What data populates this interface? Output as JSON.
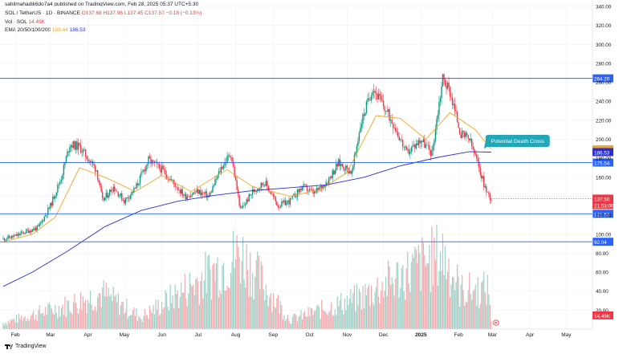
{
  "header": {
    "publisher": "sahilmahadik6do7a4 published on TradingView.com, Feb 28, 2025 05:37 UTC+5:30",
    "symbol": "SOL / TetherUS · 1D · BINANCE",
    "ohlc": "O137.68 H137.96 L137.45 C137.50 −0.18 (−0.13%)",
    "vol_label": "Vol · SOL",
    "vol_value": "14.49K",
    "ema_label": "EMA 20/50/100/200",
    "ema_val1": "189.44",
    "ema_val2": "186.53"
  },
  "footer": {
    "brand": "TradingView"
  },
  "chart_data": {
    "type": "candlestick",
    "symbol": "SOL / TetherUS",
    "interval": "1D",
    "exchange": "BINANCE",
    "y_axis": {
      "range": [
        0,
        340
      ],
      "ticks": [
        "340.00",
        "320.00",
        "300.00",
        "280.00",
        "260.00",
        "240.00",
        "220.00",
        "200.00",
        "180.00",
        "160.00",
        "140.00",
        "120.00",
        "100.00",
        "80.00",
        "60.00",
        "40.00",
        "20.00"
      ]
    },
    "x_axis": {
      "labels": [
        {
          "label": "Feb",
          "date": "2024-02-01"
        },
        {
          "label": "Mar",
          "date": "2024-03-01"
        },
        {
          "label": "Apr",
          "date": "2024-04-01"
        },
        {
          "label": "May",
          "date": "2024-05-01"
        },
        {
          "label": "Jun",
          "date": "2024-06-01"
        },
        {
          "label": "Jul",
          "date": "2024-07-01"
        },
        {
          "label": "Aug",
          "date": "2024-08-01"
        },
        {
          "label": "Sep",
          "date": "2024-09-01"
        },
        {
          "label": "Oct",
          "date": "2024-10-01"
        },
        {
          "label": "Nov",
          "date": "2024-11-01"
        },
        {
          "label": "Dec",
          "date": "2024-12-01"
        },
        {
          "label": "2025",
          "date": "2025-01-01"
        },
        {
          "label": "Feb",
          "date": "2025-02-01"
        },
        {
          "label": "Mar",
          "date": "2025-03-01"
        },
        {
          "label": "Apr",
          "date": "2025-04-01"
        },
        {
          "label": "May",
          "date": "2025-05-01"
        }
      ]
    },
    "horizontal_levels": [
      {
        "price": 264.2,
        "label": "264.20"
      },
      {
        "price": 175.54,
        "label": "175.54"
      },
      {
        "price": 121.53,
        "label": "121.53"
      },
      {
        "price": 92.04,
        "label": "92.04"
      }
    ],
    "price_tags": [
      {
        "price": 189.44,
        "label": "189.44",
        "color": "#f5a623"
      },
      {
        "price": 186.53,
        "label": "186.53",
        "color": "#2a2fd4"
      },
      {
        "price": 137.5,
        "label": "137.50",
        "color": "#f23645"
      },
      {
        "sublabel": "21:53:00",
        "color": "#f23645"
      },
      {
        "price": 14.49,
        "label": "14.49K",
        "color": "#f23645"
      }
    ],
    "annotation": {
      "text": "Potential Death Cross",
      "color": "#22a7b8"
    },
    "ema20_color": "#f5a623",
    "ema200_color": "#2a2fd4",
    "up_color": "#089981",
    "down_color": "#f23645",
    "price_path": [
      {
        "d": "2024-01-22",
        "p": 95
      },
      {
        "d": "2024-02-01",
        "p": 98
      },
      {
        "d": "2024-02-10",
        "p": 103
      },
      {
        "d": "2024-02-20",
        "p": 107
      },
      {
        "d": "2024-03-01",
        "p": 130
      },
      {
        "d": "2024-03-10",
        "p": 160
      },
      {
        "d": "2024-03-17",
        "p": 195
      },
      {
        "d": "2024-03-25",
        "p": 192
      },
      {
        "d": "2024-04-01",
        "p": 180
      },
      {
        "d": "2024-04-08",
        "p": 168
      },
      {
        "d": "2024-04-13",
        "p": 135
      },
      {
        "d": "2024-04-22",
        "p": 150
      },
      {
        "d": "2024-05-01",
        "p": 135
      },
      {
        "d": "2024-05-10",
        "p": 148
      },
      {
        "d": "2024-05-21",
        "p": 178
      },
      {
        "d": "2024-06-01",
        "p": 168
      },
      {
        "d": "2024-06-10",
        "p": 155
      },
      {
        "d": "2024-06-20",
        "p": 140
      },
      {
        "d": "2024-07-01",
        "p": 145
      },
      {
        "d": "2024-07-10",
        "p": 140
      },
      {
        "d": "2024-07-20",
        "p": 170
      },
      {
        "d": "2024-07-28",
        "p": 185
      },
      {
        "d": "2024-08-05",
        "p": 125
      },
      {
        "d": "2024-08-15",
        "p": 145
      },
      {
        "d": "2024-08-25",
        "p": 155
      },
      {
        "d": "2024-09-05",
        "p": 130
      },
      {
        "d": "2024-09-15",
        "p": 135
      },
      {
        "d": "2024-09-25",
        "p": 150
      },
      {
        "d": "2024-10-05",
        "p": 143
      },
      {
        "d": "2024-10-15",
        "p": 155
      },
      {
        "d": "2024-10-25",
        "p": 175
      },
      {
        "d": "2024-11-05",
        "p": 165
      },
      {
        "d": "2024-11-12",
        "p": 215
      },
      {
        "d": "2024-11-22",
        "p": 255
      },
      {
        "d": "2024-12-01",
        "p": 235
      },
      {
        "d": "2024-12-10",
        "p": 215
      },
      {
        "d": "2024-12-20",
        "p": 185
      },
      {
        "d": "2025-01-01",
        "p": 200
      },
      {
        "d": "2025-01-10",
        "p": 185
      },
      {
        "d": "2025-01-19",
        "p": 265
      },
      {
        "d": "2025-01-25",
        "p": 250
      },
      {
        "d": "2025-02-03",
        "p": 205
      },
      {
        "d": "2025-02-10",
        "p": 200
      },
      {
        "d": "2025-02-18",
        "p": 170
      },
      {
        "d": "2025-02-24",
        "p": 145
      },
      {
        "d": "2025-02-28",
        "p": 137.5
      }
    ],
    "ema20": [
      {
        "d": "2024-01-22",
        "p": 92
      },
      {
        "d": "2024-02-15",
        "p": 100
      },
      {
        "d": "2024-03-05",
        "p": 118
      },
      {
        "d": "2024-03-25",
        "p": 170
      },
      {
        "d": "2024-04-15",
        "p": 160
      },
      {
        "d": "2024-05-10",
        "p": 145
      },
      {
        "d": "2024-06-01",
        "p": 162
      },
      {
        "d": "2024-06-25",
        "p": 145
      },
      {
        "d": "2024-07-25",
        "p": 168
      },
      {
        "d": "2024-08-15",
        "p": 150
      },
      {
        "d": "2024-09-15",
        "p": 140
      },
      {
        "d": "2024-10-10",
        "p": 147
      },
      {
        "d": "2024-11-01",
        "p": 165
      },
      {
        "d": "2024-11-25",
        "p": 225
      },
      {
        "d": "2024-12-15",
        "p": 222
      },
      {
        "d": "2025-01-05",
        "p": 200
      },
      {
        "d": "2025-01-25",
        "p": 228
      },
      {
        "d": "2025-02-15",
        "p": 210
      },
      {
        "d": "2025-02-28",
        "p": 189.44
      }
    ],
    "ema200": [
      {
        "d": "2024-01-22",
        "p": 45
      },
      {
        "d": "2024-02-15",
        "p": 60
      },
      {
        "d": "2024-03-15",
        "p": 82
      },
      {
        "d": "2024-04-15",
        "p": 108
      },
      {
        "d": "2024-05-15",
        "p": 125
      },
      {
        "d": "2024-06-15",
        "p": 135
      },
      {
        "d": "2024-07-15",
        "p": 141
      },
      {
        "d": "2024-08-15",
        "p": 146
      },
      {
        "d": "2024-09-15",
        "p": 149
      },
      {
        "d": "2024-10-15",
        "p": 152
      },
      {
        "d": "2024-11-15",
        "p": 160
      },
      {
        "d": "2024-12-15",
        "p": 172
      },
      {
        "d": "2025-01-15",
        "p": 181
      },
      {
        "d": "2025-02-10",
        "p": 187
      },
      {
        "d": "2025-02-28",
        "p": 186.53
      }
    ],
    "volume_path": [
      {
        "d": "2024-01-22",
        "v": 8
      },
      {
        "d": "2024-03-15",
        "v": 30
      },
      {
        "d": "2024-04-13",
        "v": 45
      },
      {
        "d": "2024-05-15",
        "v": 15
      },
      {
        "d": "2024-08-05",
        "v": 95
      },
      {
        "d": "2024-09-15",
        "v": 12
      },
      {
        "d": "2024-11-12",
        "v": 40
      },
      {
        "d": "2025-01-19",
        "v": 95
      },
      {
        "d": "2025-02-03",
        "v": 48
      },
      {
        "d": "2025-02-26",
        "v": 50
      },
      {
        "d": "2025-02-28",
        "v": 14.49
      }
    ]
  }
}
